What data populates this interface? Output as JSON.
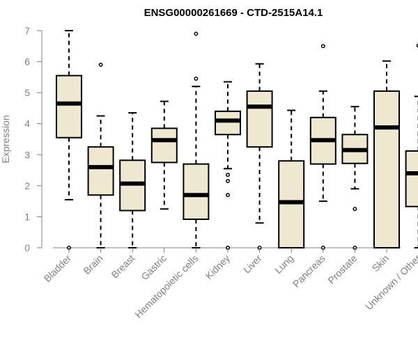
{
  "chart_data": {
    "type": "boxplot",
    "title": "ENSG00000261669 - CTD-2515A14.1",
    "ylabel": "Expression",
    "xlabel": "",
    "ylim": [
      0,
      7
    ],
    "yticks": [
      0,
      1,
      2,
      3,
      4,
      5,
      6,
      7
    ],
    "grid": false,
    "categories": [
      "Bladder",
      "Brain",
      "Breast",
      "Gastric",
      "Hematopoietic cells",
      "Kidney",
      "Liver",
      "Lung",
      "Pancreas",
      "Prostate",
      "Skin",
      "Unknown / Other"
    ],
    "boxes": [
      {
        "label": "Bladder",
        "whisker_low": 1.55,
        "q1": 3.55,
        "median": 4.65,
        "q3": 5.55,
        "whisker_high": 7.0,
        "outliers": [
          0.0
        ]
      },
      {
        "label": "Brain",
        "whisker_low": 0.0,
        "q1": 1.7,
        "median": 2.6,
        "q3": 3.25,
        "whisker_high": 4.25,
        "outliers": [
          5.9
        ]
      },
      {
        "label": "Breast",
        "whisker_low": 0.0,
        "q1": 1.2,
        "median": 2.07,
        "q3": 2.82,
        "whisker_high": 4.35,
        "outliers": []
      },
      {
        "label": "Gastric",
        "whisker_low": 1.25,
        "q1": 2.75,
        "median": 3.47,
        "q3": 3.85,
        "whisker_high": 4.72,
        "outliers": []
      },
      {
        "label": "Hematopoietic cells",
        "whisker_low": 0.0,
        "q1": 0.92,
        "median": 1.7,
        "q3": 2.7,
        "whisker_high": 5.2,
        "outliers": [
          5.45,
          6.9
        ]
      },
      {
        "label": "Kidney",
        "whisker_low": 2.55,
        "q1": 3.65,
        "median": 4.1,
        "q3": 4.4,
        "whisker_high": 5.35,
        "outliers": [
          2.35,
          2.15,
          1.7,
          0.0
        ]
      },
      {
        "label": "Liver",
        "whisker_low": 0.8,
        "q1": 3.25,
        "median": 4.55,
        "q3": 5.05,
        "whisker_high": 5.93,
        "outliers": [
          0.0
        ]
      },
      {
        "label": "Lung",
        "whisker_low": 0.0,
        "q1": 0.0,
        "median": 1.47,
        "q3": 2.8,
        "whisker_high": 4.43,
        "outliers": []
      },
      {
        "label": "Pancreas",
        "whisker_low": 1.5,
        "q1": 2.7,
        "median": 3.47,
        "q3": 4.2,
        "whisker_high": 5.05,
        "outliers": [
          6.5,
          0.0
        ]
      },
      {
        "label": "Prostate",
        "whisker_low": 1.9,
        "q1": 2.72,
        "median": 3.15,
        "q3": 3.65,
        "whisker_high": 4.55,
        "outliers": [
          1.25,
          0.0
        ]
      },
      {
        "label": "Skin",
        "whisker_low": 0.0,
        "q1": 0.0,
        "median": 3.88,
        "q3": 5.05,
        "whisker_high": 6.02,
        "outliers": []
      },
      {
        "label": "Unknown / Other",
        "whisker_low": 0.0,
        "q1": 1.33,
        "median": 2.4,
        "q3": 3.12,
        "whisker_high": 4.88,
        "outliers": [
          6.52
        ]
      }
    ],
    "colors": {
      "box_fill": "#efe8d1",
      "box_stroke": "#000000",
      "axis": "#808080"
    }
  }
}
